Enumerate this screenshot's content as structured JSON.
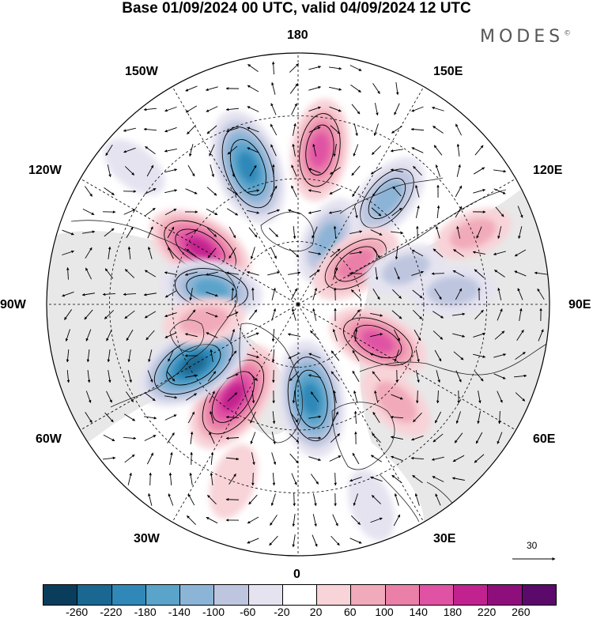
{
  "title": "Base 01/09/2024 00 UTC, valid 04/09/2024 12 UTC",
  "brand": {
    "name": "MODES",
    "mark": "©"
  },
  "longitude_labels": {
    "lon_180": "180",
    "lon_150e": "150E",
    "lon_120e": "120E",
    "lon_90e": "90E",
    "lon_60e": "60E",
    "lon_30e": "30E",
    "lon_0": "0",
    "lon_30w": "30W",
    "lon_60w": "60W",
    "lon_90w": "90W",
    "lon_120w": "120W",
    "lon_150w": "150W"
  },
  "vector_scale": {
    "value": "30"
  },
  "colorbar": {
    "colors": [
      "#0a3d5c",
      "#1a6791",
      "#2f88b8",
      "#5aa3ca",
      "#8cb4d6",
      "#bec6df",
      "#e5e3f0",
      "#ffffff",
      "#f8d3d8",
      "#f1aab9",
      "#ea7fa8",
      "#e052a4",
      "#c2228f",
      "#8e0f7c",
      "#5b0a6c"
    ],
    "tick_labels": [
      "-260",
      "-220",
      "-180",
      "-140",
      "-100",
      "-60",
      "-20",
      "20",
      "60",
      "100",
      "140",
      "180",
      "220",
      "260"
    ]
  },
  "map": {
    "projection": "north-polar-stereographic",
    "field": "geopotential height anomaly",
    "field_units_shown": "colorbar",
    "anomaly_centres": [
      {
        "lon": -160,
        "r": 0.58,
        "value": -230
      },
      {
        "lon": 172,
        "r": 0.62,
        "value": 170
      },
      {
        "lon": 140,
        "r": 0.55,
        "value": -150
      },
      {
        "lon": -120,
        "r": 0.45,
        "value": 200
      },
      {
        "lon": -100,
        "r": 0.35,
        "value": -170
      },
      {
        "lon": 155,
        "r": 0.28,
        "value": -120
      },
      {
        "lon": 125,
        "r": 0.28,
        "value": 150
      },
      {
        "lon": 108,
        "r": 0.45,
        "value": -90
      },
      {
        "lon": 95,
        "r": 0.62,
        "value": -110
      },
      {
        "lon": 65,
        "r": 0.35,
        "value": 170
      },
      {
        "lon": 45,
        "r": 0.55,
        "value": 100
      },
      {
        "lon": 8,
        "r": 0.38,
        "value": -230
      },
      {
        "lon": -35,
        "r": 0.45,
        "value": 230
      },
      {
        "lon": -60,
        "r": 0.48,
        "value": -240
      },
      {
        "lon": -80,
        "r": 0.38,
        "value": 90
      },
      {
        "lon": 112,
        "r": 0.75,
        "value": 80
      },
      {
        "lon": -130,
        "r": 0.85,
        "value": -50
      },
      {
        "lon": 20,
        "r": 0.85,
        "value": -60
      },
      {
        "lon": -20,
        "r": 0.75,
        "value": 70
      }
    ]
  }
}
